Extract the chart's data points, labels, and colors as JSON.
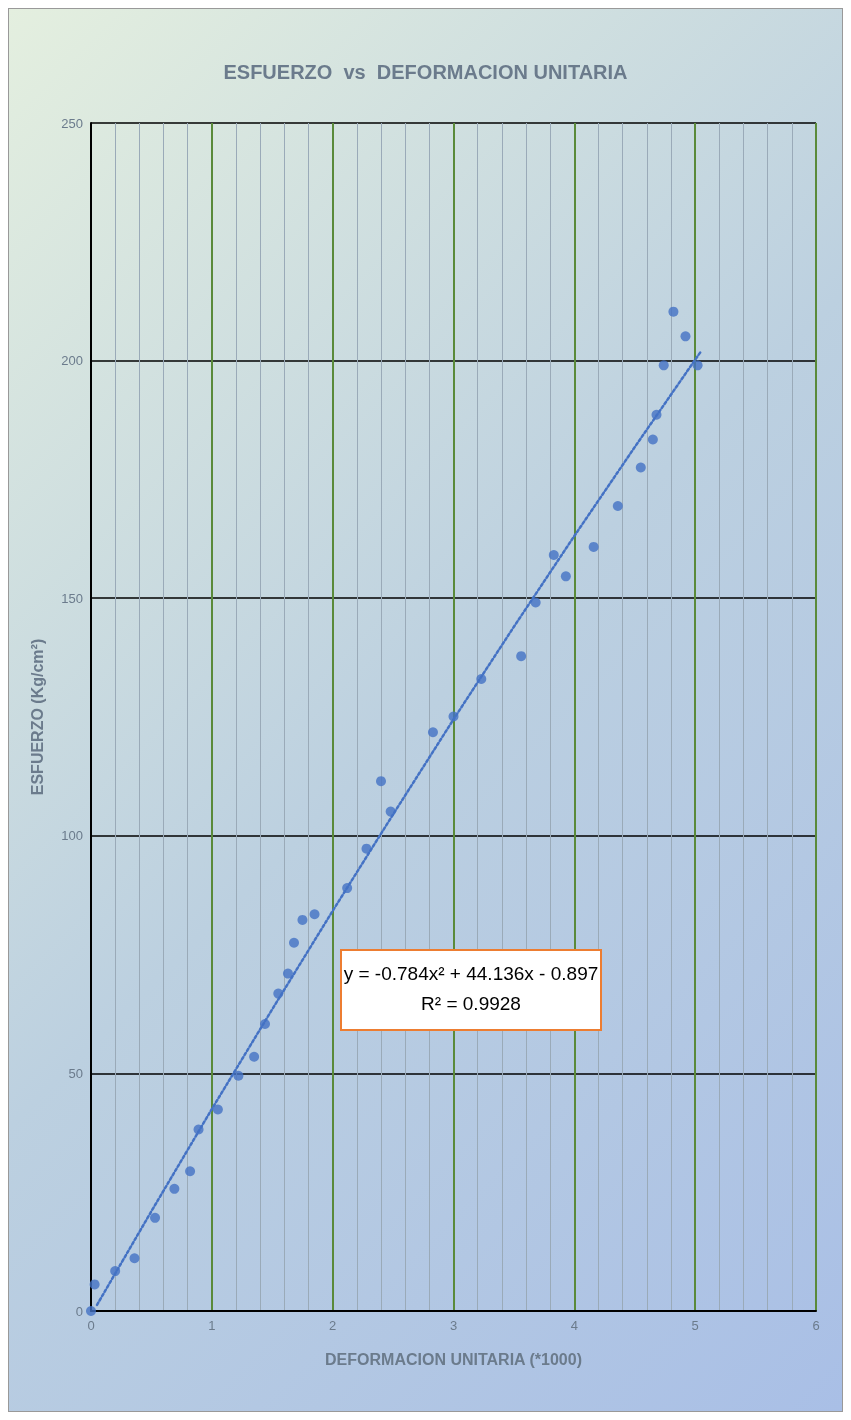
{
  "chart_data": {
    "type": "scatter",
    "title": "ESFUERZO  vs  DEFORMACION UNITARIA",
    "xlabel": "DEFORMACION UNITARIA (*1000)",
    "ylabel": "ESFUERZO (Kg/cm²)",
    "annotations": [
      "y = -0.784x² + 44.136x - 0.897",
      "R² = 0.9928"
    ],
    "xlim": [
      0,
      6
    ],
    "xticks": [
      0,
      1,
      2,
      3,
      4,
      5,
      6
    ],
    "ylim": [
      0,
      250
    ],
    "yticks": [
      0,
      50,
      100,
      150,
      200,
      250
    ],
    "grid": true,
    "marker": "circle",
    "series": [
      {
        "color": "#4472c4",
        "x": [
          0,
          0.03,
          0.2,
          0.36,
          0.53,
          0.69,
          0.82,
          0.89,
          1.05,
          1.22,
          1.35,
          1.44,
          1.55,
          1.63,
          1.68,
          1.75,
          1.85,
          2.12,
          2.28,
          2.4,
          2.48,
          2.83,
          3.0,
          3.23,
          3.56,
          3.68,
          3.83,
          3.93,
          4.16,
          4.36,
          4.55,
          4.65,
          4.68,
          4.74,
          4.82,
          4.92,
          5.02
        ],
        "values": [
          0,
          5.6,
          8.4,
          11.1,
          19.6,
          25.7,
          29.4,
          38.2,
          42.4,
          49.5,
          53.5,
          60.4,
          66.8,
          71.0,
          77.5,
          82.3,
          83.5,
          89.0,
          97.3,
          111.5,
          105.1,
          121.8,
          125.1,
          133.0,
          137.8,
          149.1,
          159.1,
          154.6,
          160.8,
          169.4,
          177.5,
          183.4,
          188.6,
          199.0,
          210.3,
          205.1,
          199.0
        ]
      },
      {
        "type": "line",
        "color": "#4472c4",
        "line_style": "dotted",
        "marker": "none",
        "x": [
          0.05,
          0.5,
          1,
          1.5,
          2,
          2.5,
          3,
          3.5,
          4,
          4.5,
          5,
          5.05
        ],
        "values": [
          1.3,
          21.0,
          42.5,
          63.5,
          84.2,
          104.5,
          124.5,
          144.0,
          163.1,
          181.8,
          200.2,
          202.0
        ]
      }
    ]
  }
}
